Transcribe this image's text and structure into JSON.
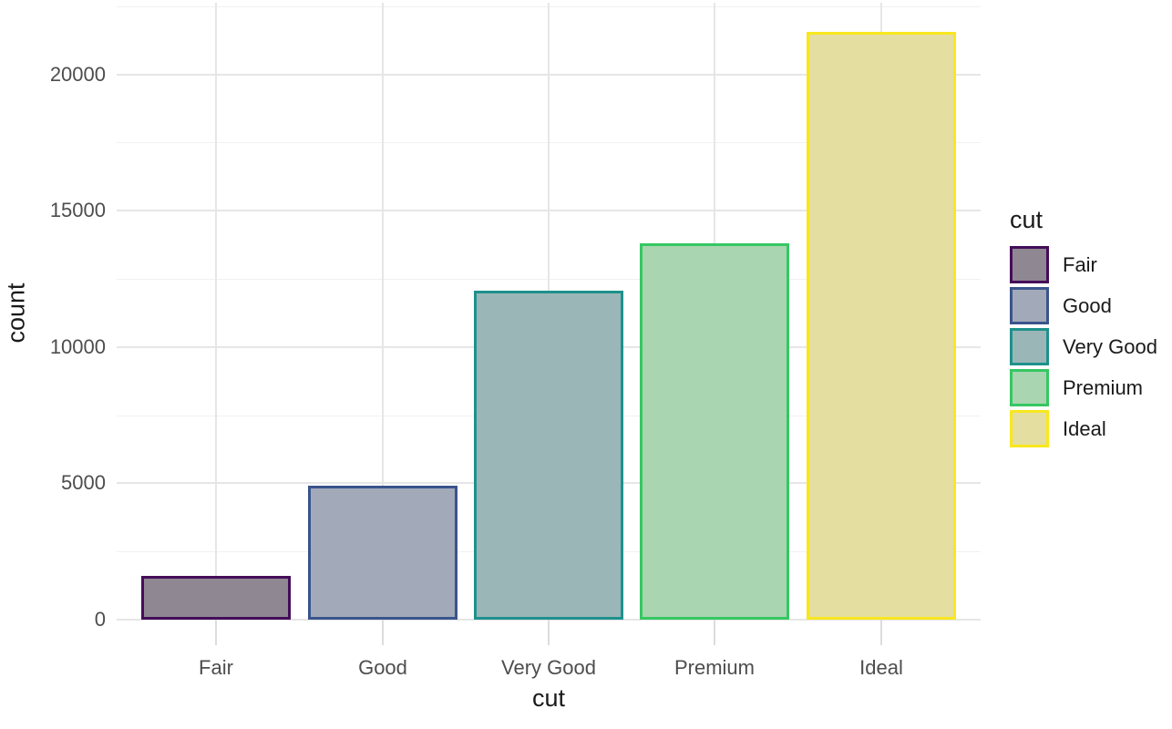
{
  "chart_data": {
    "type": "bar",
    "title": "",
    "xlabel": "cut",
    "ylabel": "count",
    "categories": [
      "Fair",
      "Good",
      "Very Good",
      "Premium",
      "Ideal"
    ],
    "values": [
      1610,
      4906,
      12082,
      13791,
      21551
    ],
    "bars": [
      {
        "label": "Fair",
        "value": 1610,
        "fill": "#8F8791",
        "stroke": "#450D59"
      },
      {
        "label": "Good",
        "value": 4906,
        "fill": "#A2A9B8",
        "stroke": "#3A548C"
      },
      {
        "label": "Very Good",
        "value": 12082,
        "fill": "#9BB6B7",
        "stroke": "#1E918C"
      },
      {
        "label": "Premium",
        "value": 13791,
        "fill": "#A9D5B0",
        "stroke": "#35C763"
      },
      {
        "label": "Ideal",
        "value": 21551,
        "fill": "#E5DEA1",
        "stroke": "#F8E71E"
      }
    ],
    "ylim": [
      0,
      22628
    ],
    "yticks_major": [
      0,
      5000,
      10000,
      15000,
      20000
    ],
    "ytick_labels": [
      "0",
      "5000",
      "10000",
      "15000",
      "20000"
    ],
    "yticks_minor": [
      2500,
      7500,
      12500,
      17500,
      22500
    ],
    "grid": true,
    "legend": {
      "title": "cut",
      "position": "right",
      "entries": [
        "Fair",
        "Good",
        "Very Good",
        "Premium",
        "Ideal"
      ]
    },
    "colors": {
      "background": "#FFFFFF",
      "grid_major": "#E6E6E6",
      "grid_minor": "#F1F1F1",
      "tick_mark": "#DCDCDC",
      "tick_label": "#4D4D4D",
      "axis_title": "#1A1A1A"
    }
  }
}
